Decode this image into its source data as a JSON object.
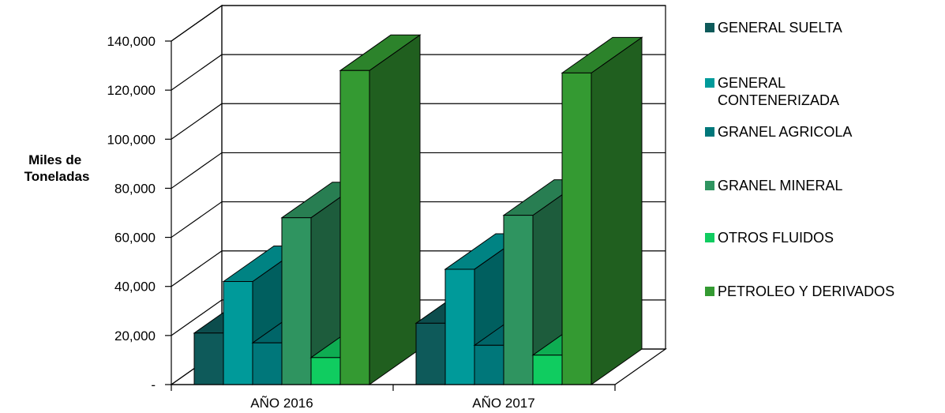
{
  "chart_data": {
    "type": "bar",
    "ylabel": "Miles de Toneladas",
    "categories": [
      "AÑO 2016",
      "AÑO 2017"
    ],
    "ylim": [
      0,
      140000
    ],
    "yticks": [
      {
        "value": 0,
        "label": "-"
      },
      {
        "value": 20000,
        "label": "20,000"
      },
      {
        "value": 40000,
        "label": "40,000"
      },
      {
        "value": 60000,
        "label": "60,000"
      },
      {
        "value": 80000,
        "label": "80,000"
      },
      {
        "value": 100000,
        "label": "100,000"
      },
      {
        "value": 120000,
        "label": "120,000"
      },
      {
        "value": 140000,
        "label": "140,000"
      }
    ],
    "grid": true,
    "legend_position": "right",
    "series": [
      {
        "name": "GENERAL SUELTA",
        "values": [
          21000,
          25000
        ],
        "color": "#0e5a5a"
      },
      {
        "name": "GENERAL CONTENERIZADA",
        "values": [
          42000,
          47000
        ],
        "color": "#009a9a"
      },
      {
        "name": "GRANEL AGRICOLA",
        "values": [
          17000,
          16000
        ],
        "color": "#00777a"
      },
      {
        "name": "GRANEL MINERAL",
        "values": [
          68000,
          69000
        ],
        "color": "#2f9460"
      },
      {
        "name": "OTROS FLUIDOS",
        "values": [
          11000,
          12000
        ],
        "color": "#10cc60"
      },
      {
        "name": "PETROLEO Y DERIVADOS",
        "values": [
          128000,
          127000
        ],
        "color": "#349a32"
      }
    ]
  }
}
